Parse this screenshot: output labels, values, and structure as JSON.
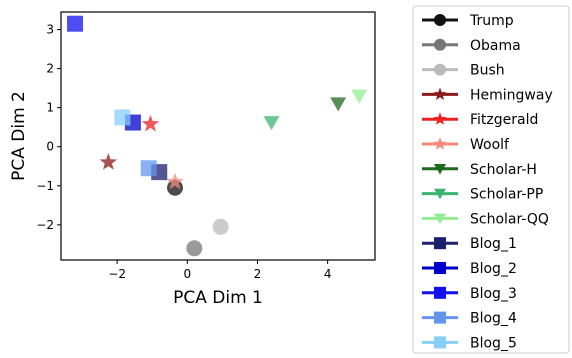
{
  "chart_data": {
    "type": "scatter",
    "title": "",
    "xlabel": "PCA Dim 1",
    "ylabel": "PCA Dim 2",
    "xlim": [
      -3.6,
      5.35
    ],
    "ylim": [
      -2.9,
      3.45
    ],
    "xticks": [
      -2,
      0,
      2,
      4
    ],
    "yticks": [
      -2,
      -1,
      0,
      1,
      2,
      3
    ],
    "xtick_labels": [
      "−2",
      "0",
      "2",
      "4"
    ],
    "ytick_labels": [
      "−2",
      "−1",
      "0",
      "1",
      "2",
      "3"
    ],
    "grid": false,
    "legend_position": "outside-right",
    "series": [
      {
        "name": "Trump",
        "color": "#111111",
        "marker": "circle",
        "points": [
          {
            "x": -0.35,
            "y": -1.05
          }
        ]
      },
      {
        "name": "Obama",
        "color": "#777777",
        "marker": "circle",
        "points": [
          {
            "x": 0.2,
            "y": -2.6
          }
        ]
      },
      {
        "name": "Bush",
        "color": "#bbbbbb",
        "marker": "circle",
        "points": [
          {
            "x": 0.95,
            "y": -2.05
          }
        ]
      },
      {
        "name": "Hemingway",
        "color": "#8b1a1a",
        "marker": "star",
        "points": [
          {
            "x": -2.25,
            "y": -0.4
          }
        ]
      },
      {
        "name": "Fitzgerald",
        "color": "#ee2222",
        "marker": "star",
        "points": [
          {
            "x": -1.05,
            "y": 0.58
          }
        ]
      },
      {
        "name": "Woolf",
        "color": "#f58a7a",
        "marker": "star",
        "points": [
          {
            "x": -0.35,
            "y": -0.9
          }
        ]
      },
      {
        "name": "Scholar-H",
        "color": "#1e6b1e",
        "marker": "triangle-down",
        "points": [
          {
            "x": 4.3,
            "y": 1.1
          }
        ]
      },
      {
        "name": "Scholar-PP",
        "color": "#3cb371",
        "marker": "triangle-down",
        "points": [
          {
            "x": 2.4,
            "y": 0.62
          }
        ]
      },
      {
        "name": "Scholar-QQ",
        "color": "#90ee90",
        "marker": "triangle-down",
        "points": [
          {
            "x": 4.9,
            "y": 1.3
          }
        ]
      },
      {
        "name": "Blog_1",
        "color": "#1a1f6e",
        "marker": "square",
        "points": [
          {
            "x": -0.8,
            "y": -0.65
          }
        ]
      },
      {
        "name": "Blog_2",
        "color": "#0000cc",
        "marker": "square",
        "points": [
          {
            "x": -1.55,
            "y": 0.62
          }
        ]
      },
      {
        "name": "Blog_3",
        "color": "#1111ee",
        "marker": "square",
        "points": [
          {
            "x": -3.2,
            "y": 3.15
          }
        ]
      },
      {
        "name": "Blog_4",
        "color": "#6495ed",
        "marker": "square",
        "points": [
          {
            "x": -1.1,
            "y": -0.55
          }
        ]
      },
      {
        "name": "Blog_5",
        "color": "#87cefa",
        "marker": "square",
        "points": [
          {
            "x": -1.85,
            "y": 0.75
          }
        ]
      }
    ]
  }
}
